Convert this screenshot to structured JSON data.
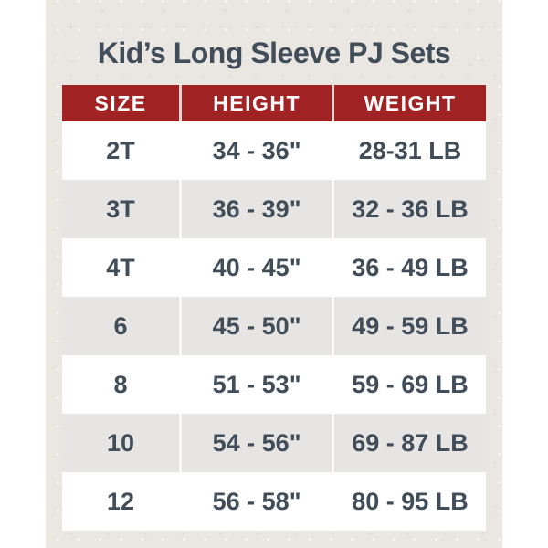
{
  "title": "Kid’s Long Sleeve PJ Sets",
  "chart_data": {
    "type": "table",
    "title": "Kid’s Long Sleeve PJ Sets",
    "columns": [
      "SIZE",
      "HEIGHT",
      "WEIGHT"
    ],
    "rows": [
      [
        "2T",
        "34 - 36\"",
        "28-31 LB"
      ],
      [
        "3T",
        "36 - 39\"",
        "32 - 36 LB"
      ],
      [
        "4T",
        "40 - 45\"",
        "36 - 49 LB"
      ],
      [
        "6",
        "45 - 50\"",
        "49 - 59 LB"
      ],
      [
        "8",
        "51 - 53\"",
        "59 - 69 LB"
      ],
      [
        "10",
        "54 - 56\"",
        "69 - 87 LB"
      ],
      [
        "12",
        "56 - 58\"",
        "80 - 95 LB"
      ]
    ]
  },
  "colors": {
    "page_bg": "#FFFFFF",
    "card_bg": "#EAE7E2",
    "header_bg": "#A02223",
    "header_text": "#FFFFFF",
    "text": "#414D59",
    "row_alt_bg": "#E7E5E3",
    "row_bg": "#FFFFFF"
  }
}
